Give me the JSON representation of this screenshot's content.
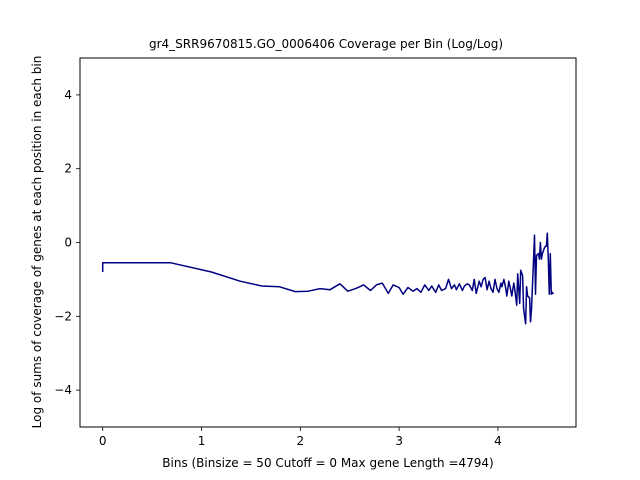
{
  "chart_data": {
    "type": "line",
    "title": "gr4_SRR9670815.GO_0006406 Coverage per Bin (Log/Log)",
    "xlabel": "Bins  (Binsize = 50 Cutoff = 0 Max gene Length =4794)",
    "ylabel": "Log of sums of coverage of genes at each position in each bin",
    "xlim": [
      -0.23,
      4.79
    ],
    "ylim": [
      -5,
      5
    ],
    "xticks": [
      0,
      1,
      2,
      3,
      4
    ],
    "yticks": [
      -4,
      -2,
      0,
      2,
      4
    ],
    "grid": false,
    "line_color": "#000080",
    "series": [
      {
        "x": [
          0,
          0,
          0.69,
          1.1,
          1.39,
          1.61,
          1.79,
          1.95,
          2.08,
          2.2,
          2.3,
          2.4,
          2.48,
          2.56,
          2.64,
          2.71,
          2.77,
          2.83,
          2.89,
          2.94,
          3.0,
          3.04,
          3.09,
          3.14,
          3.18,
          3.22,
          3.26,
          3.3,
          3.33,
          3.37,
          3.4,
          3.43,
          3.47,
          3.5,
          3.53,
          3.56,
          3.58,
          3.61,
          3.64,
          3.66,
          3.69,
          3.71,
          3.74,
          3.76,
          3.78,
          3.81,
          3.83,
          3.85,
          3.87,
          3.89,
          3.91,
          3.93,
          3.95,
          3.97,
          3.99,
          4.01,
          4.03,
          4.04,
          4.06,
          4.08,
          4.09,
          4.11,
          4.13,
          4.14,
          4.16,
          4.17,
          4.19,
          4.2,
          4.22,
          4.23,
          4.25,
          4.26,
          4.28,
          4.29,
          4.3,
          4.32,
          4.33,
          4.34,
          4.36,
          4.37,
          4.38,
          4.39,
          4.41,
          4.42,
          4.43,
          4.44,
          4.45,
          4.47,
          4.48,
          4.49,
          4.5,
          4.51,
          4.52,
          4.53,
          4.54,
          4.55,
          4.56
        ],
        "y": [
          -0.8,
          -0.55,
          -0.55,
          -0.8,
          -1.05,
          -1.18,
          -1.2,
          -1.33,
          -1.32,
          -1.25,
          -1.28,
          -1.12,
          -1.32,
          -1.25,
          -1.15,
          -1.3,
          -1.15,
          -1.1,
          -1.38,
          -1.15,
          -1.22,
          -1.4,
          -1.22,
          -1.32,
          -1.25,
          -1.35,
          -1.15,
          -1.3,
          -1.18,
          -1.35,
          -1.15,
          -1.3,
          -1.25,
          -1.0,
          -1.25,
          -1.15,
          -1.28,
          -1.12,
          -1.3,
          -1.18,
          -1.12,
          -1.15,
          -1.3,
          -1.0,
          -1.38,
          -1.05,
          -1.2,
          -1.0,
          -0.95,
          -1.28,
          -1.05,
          -1.25,
          -1.35,
          -1.0,
          -1.25,
          -1.35,
          -1.1,
          -1.2,
          -1.0,
          -1.25,
          -1.45,
          -1.05,
          -1.3,
          -1.45,
          -1.1,
          -1.25,
          -1.7,
          -0.85,
          -1.65,
          -0.75,
          -0.9,
          -1.8,
          -2.2,
          -1.2,
          -1.45,
          -1.5,
          -2.15,
          -1.8,
          -0.5,
          0.2,
          -1.4,
          -0.35,
          -0.3,
          -0.45,
          0.0,
          -0.45,
          -0.3,
          -0.15,
          -0.1,
          -0.1,
          0.25,
          -0.45,
          -1.4,
          -0.3,
          -1.4,
          -1.35,
          -1.4
        ]
      }
    ]
  }
}
